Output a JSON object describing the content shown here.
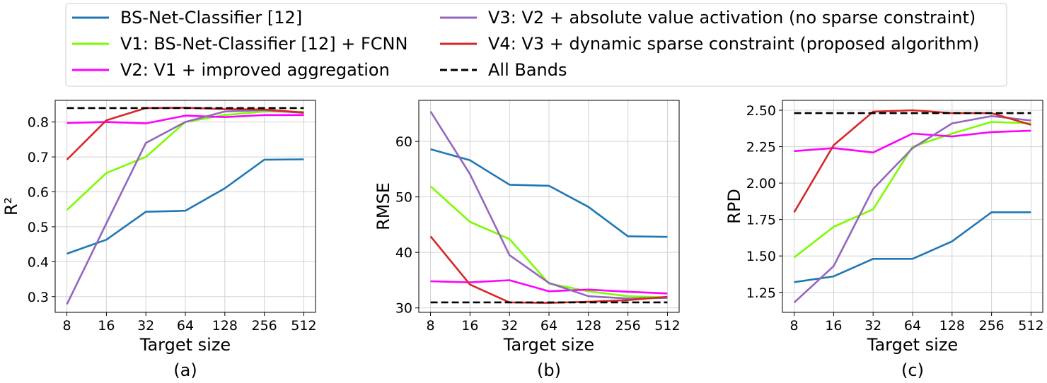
{
  "legend": {
    "entries": [
      {
        "key": "bs",
        "label": "BS-Net-Classifier [12]",
        "color": "#1f77b4",
        "dashed": false
      },
      {
        "key": "v1",
        "label": "V1: BS-Net-Classifier [12] + FCNN",
        "color": "#7cfc00",
        "dashed": false
      },
      {
        "key": "v2",
        "label": "V2: V1 + improved aggregation",
        "color": "#ff00ff",
        "dashed": false
      },
      {
        "key": "v3",
        "label": "V3: V2 + absolute value activation (no sparse constraint)",
        "color": "#9467bd",
        "dashed": false
      },
      {
        "key": "v4",
        "label": "V4: V3 + dynamic sparse constraint (proposed algorithm)",
        "color": "#d62728",
        "dashed": false
      },
      {
        "key": "all",
        "label": "All Bands",
        "color": "#000000",
        "dashed": true
      }
    ]
  },
  "chart_data": [
    {
      "type": "line",
      "panel_label": "(a)",
      "xlabel": "Target size",
      "ylabel": "R²",
      "categories": [
        "8",
        "16",
        "32",
        "64",
        "128",
        "256",
        "512"
      ],
      "ylim": [
        0.255,
        0.862
      ],
      "yticks": [
        0.3,
        0.4,
        0.5,
        0.6,
        0.7,
        0.8
      ],
      "ytick_labels": [
        "0.3",
        "0.4",
        "0.5",
        "0.6",
        "0.7",
        "0.8"
      ],
      "grid": true,
      "series": [
        {
          "name": "BS-Net-Classifier [12]",
          "key": "bs",
          "values": [
            0.423,
            0.463,
            0.543,
            0.546,
            0.61,
            0.692,
            0.693
          ]
        },
        {
          "name": "V1: BS-Net-Classifier [12] + FCNN",
          "key": "v1",
          "values": [
            0.548,
            0.654,
            0.7,
            0.8,
            0.82,
            0.83,
            0.829
          ]
        },
        {
          "name": "V2: V1 + improved aggregation",
          "key": "v2",
          "values": [
            0.797,
            0.8,
            0.796,
            0.818,
            0.814,
            0.82,
            0.82
          ]
        },
        {
          "name": "V3: V2 + absolute value activation (no sparse constraint)",
          "key": "v3",
          "values": [
            0.278,
            0.51,
            0.74,
            0.8,
            0.83,
            0.834,
            0.826
          ]
        },
        {
          "name": "V4: V3 + dynamic sparse constraint (proposed algorithm)",
          "key": "v4",
          "values": [
            0.692,
            0.805,
            0.84,
            0.841,
            0.837,
            0.836,
            0.827
          ]
        },
        {
          "name": "All Bands",
          "key": "all",
          "values": [
            0.84,
            0.84,
            0.84,
            0.84,
            0.84,
            0.84,
            0.84
          ]
        }
      ]
    },
    {
      "type": "line",
      "panel_label": "(b)",
      "xlabel": "Target size",
      "ylabel": "RMSE",
      "categories": [
        "8",
        "16",
        "32",
        "64",
        "128",
        "256",
        "512"
      ],
      "ylim": [
        29.2,
        67.4
      ],
      "yticks": [
        30,
        40,
        50,
        60
      ],
      "ytick_labels": [
        "30",
        "40",
        "50",
        "60"
      ],
      "grid": true,
      "series": [
        {
          "name": "BS-Net-Classifier [12]",
          "key": "bs",
          "values": [
            58.6,
            56.6,
            52.2,
            52.0,
            48.2,
            42.9,
            42.8
          ]
        },
        {
          "name": "V1: BS-Net-Classifier [12] + FCNN",
          "key": "v1",
          "values": [
            51.9,
            45.5,
            42.4,
            34.4,
            33.0,
            32.1,
            31.9
          ]
        },
        {
          "name": "V2: V1 + improved aggregation",
          "key": "v2",
          "values": [
            34.8,
            34.6,
            35.0,
            33.0,
            33.3,
            32.9,
            32.6
          ]
        },
        {
          "name": "V3: V2 + absolute value activation (no sparse constraint)",
          "key": "v3",
          "values": [
            65.4,
            54.1,
            39.5,
            34.5,
            32.1,
            31.7,
            31.8
          ]
        },
        {
          "name": "V4: V3 + dynamic sparse constraint (proposed algorithm)",
          "key": "v4",
          "values": [
            42.9,
            34.2,
            31.0,
            30.9,
            31.1,
            31.4,
            32.0
          ]
        },
        {
          "name": "All Bands",
          "key": "all",
          "values": [
            31.0,
            31.0,
            31.0,
            31.0,
            31.0,
            31.0,
            31.0
          ]
        }
      ]
    },
    {
      "type": "line",
      "panel_label": "(c)",
      "xlabel": "Target size",
      "ylabel": "RPD",
      "categories": [
        "8",
        "16",
        "32",
        "64",
        "128",
        "256",
        "512"
      ],
      "ylim": [
        1.113,
        2.568
      ],
      "yticks": [
        1.25,
        1.5,
        1.75,
        2.0,
        2.25,
        2.5
      ],
      "ytick_labels": [
        "1.25",
        "1.50",
        "1.75",
        "2.00",
        "2.25",
        "2.50"
      ],
      "grid": true,
      "series": [
        {
          "name": "BS-Net-Classifier [12]",
          "key": "bs",
          "values": [
            1.32,
            1.36,
            1.48,
            1.48,
            1.6,
            1.8,
            1.8
          ]
        },
        {
          "name": "V1: BS-Net-Classifier [12] + FCNN",
          "key": "v1",
          "values": [
            1.49,
            1.7,
            1.82,
            2.25,
            2.34,
            2.42,
            2.41
          ]
        },
        {
          "name": "V2: V1 + improved aggregation",
          "key": "v2",
          "values": [
            2.22,
            2.24,
            2.21,
            2.34,
            2.32,
            2.35,
            2.36
          ]
        },
        {
          "name": "V3: V2 + absolute value activation (no sparse constraint)",
          "key": "v3",
          "values": [
            1.18,
            1.43,
            1.96,
            2.24,
            2.41,
            2.46,
            2.43
          ]
        },
        {
          "name": "V4: V3 + dynamic sparse constraint (proposed algorithm)",
          "key": "v4",
          "values": [
            1.8,
            2.26,
            2.49,
            2.5,
            2.48,
            2.48,
            2.4
          ]
        },
        {
          "name": "All Bands",
          "key": "all",
          "values": [
            2.48,
            2.48,
            2.48,
            2.48,
            2.48,
            2.48,
            2.48
          ]
        }
      ]
    }
  ]
}
